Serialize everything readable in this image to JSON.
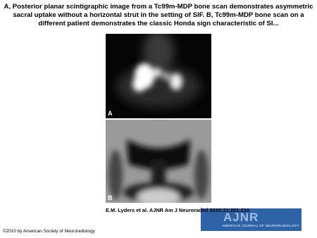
{
  "header": {
    "title": "A, Posterior planar scintigraphic image from a Tc99m-MDP bone scan demonstrates asymmetric sacral uptake without a horizontal strut in the setting of SIF. B, Tc99m-MDP bone scan on a different patient demonstrates the classic Honda sign characteristic of SI..."
  },
  "figure": {
    "panels": [
      "A",
      "B"
    ],
    "citation": "E.M. Lyders et al. AJNR Am J Neuroradiol 2010;31:201-210"
  },
  "logo": {
    "name": "AJNR",
    "subtitle": "AMERICAN JOURNAL OF NEURORADIOLOGY"
  },
  "footer": {
    "copyright": "©2010 by American Society of Neuroradiology"
  }
}
